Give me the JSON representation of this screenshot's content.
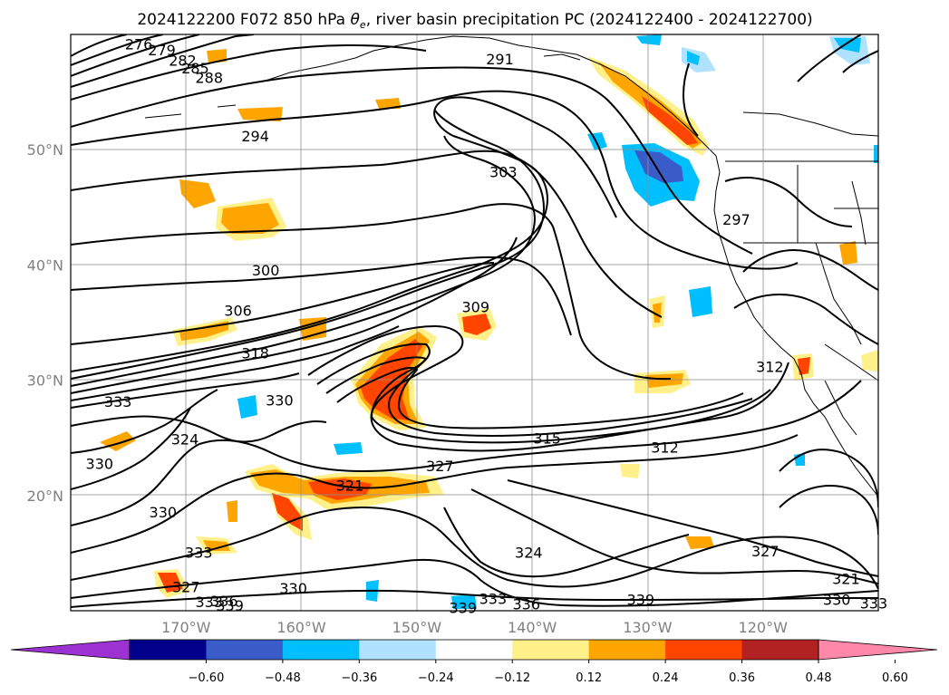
{
  "title": {
    "text_before": "2024122200 F072 850 hPa ",
    "theta": "θ",
    "theta_sub": "e",
    "text_after": ", river basin precipitation PC (2024122400 - 2024122700)"
  },
  "map": {
    "lon_range": [
      -180,
      -110
    ],
    "lat_range": [
      10,
      60
    ],
    "lon_ticks": [
      {
        "value": -170,
        "label": "170°W"
      },
      {
        "value": -160,
        "label": "160°W"
      },
      {
        "value": -150,
        "label": "150°W"
      },
      {
        "value": -140,
        "label": "140°W"
      },
      {
        "value": -130,
        "label": "130°W"
      },
      {
        "value": -120,
        "label": "120°W"
      }
    ],
    "lat_ticks": [
      {
        "value": 50,
        "label": "50°N"
      },
      {
        "value": 40,
        "label": "40°N"
      },
      {
        "value": 30,
        "label": "30°N"
      },
      {
        "value": 20,
        "label": "20°N"
      }
    ]
  },
  "contour_labels": [
    {
      "text": "276",
      "lon": -174.1,
      "lat": 59.1
    },
    {
      "text": "279",
      "lon": -172.1,
      "lat": 58.6
    },
    {
      "text": "282",
      "lon": -170.3,
      "lat": 57.7
    },
    {
      "text": "285",
      "lon": -169.2,
      "lat": 57.0
    },
    {
      "text": "288",
      "lon": -168.0,
      "lat": 56.2
    },
    {
      "text": "291",
      "lon": -142.8,
      "lat": 57.8
    },
    {
      "text": "294",
      "lon": -164.0,
      "lat": 51.1
    },
    {
      "text": "303",
      "lon": -142.5,
      "lat": 48.0
    },
    {
      "text": "297",
      "lon": -122.3,
      "lat": 43.9
    },
    {
      "text": "300",
      "lon": -163.1,
      "lat": 39.5
    },
    {
      "text": "306",
      "lon": -165.5,
      "lat": 36.0
    },
    {
      "text": "309",
      "lon": -144.9,
      "lat": 36.3
    },
    {
      "text": "318",
      "lon": -164.0,
      "lat": 32.3
    },
    {
      "text": "312",
      "lon": -119.4,
      "lat": 31.1
    },
    {
      "text": "330",
      "lon": -161.9,
      "lat": 28.2
    },
    {
      "text": "333",
      "lon": -175.9,
      "lat": 28.1
    },
    {
      "text": "324",
      "lon": -170.1,
      "lat": 24.8
    },
    {
      "text": "315",
      "lon": -138.7,
      "lat": 24.9
    },
    {
      "text": "312",
      "lon": -128.5,
      "lat": 24.1
    },
    {
      "text": "330",
      "lon": -177.5,
      "lat": 22.7
    },
    {
      "text": "327",
      "lon": -148.0,
      "lat": 22.5
    },
    {
      "text": "321",
      "lon": -155.8,
      "lat": 20.8
    },
    {
      "text": "330",
      "lon": -172.0,
      "lat": 18.5
    },
    {
      "text": "324",
      "lon": -140.3,
      "lat": 15.0
    },
    {
      "text": "333",
      "lon": -168.9,
      "lat": 15.0
    },
    {
      "text": "327",
      "lon": -119.8,
      "lat": 15.1
    },
    {
      "text": "327",
      "lon": -170.0,
      "lat": 12.0
    },
    {
      "text": "330",
      "lon": -160.7,
      "lat": 11.9
    },
    {
      "text": "321",
      "lon": -112.8,
      "lat": 12.7
    },
    {
      "text": "333",
      "lon": -168.0,
      "lat": 10.7
    },
    {
      "text": "336",
      "lon": -166.7,
      "lat": 10.8
    },
    {
      "text": "339",
      "lon": -166.2,
      "lat": 10.4
    },
    {
      "text": "333",
      "lon": -143.4,
      "lat": 11.0
    },
    {
      "text": "336",
      "lon": -140.5,
      "lat": 10.5
    },
    {
      "text": "339",
      "lon": -146.0,
      "lat": 10.2
    },
    {
      "text": "339",
      "lon": -130.6,
      "lat": 10.9
    },
    {
      "text": "330",
      "lon": -113.6,
      "lat": 10.9
    },
    {
      "text": "333",
      "lon": -110.4,
      "lat": 10.6
    }
  ],
  "colorbar": {
    "colors": [
      "#9b32d1",
      "#00008b",
      "#3a5cc8",
      "#00bfff",
      "#b0e2ff",
      "#ffffff",
      "#fff08a",
      "#ffa500",
      "#ff4500",
      "#b22222",
      "#ff88aa"
    ],
    "tick_labels": [
      "−0.60",
      "−0.48",
      "−0.36",
      "−0.24",
      "−0.12",
      "0.12",
      "0.24",
      "0.36",
      "0.48",
      "0.60"
    ]
  }
}
